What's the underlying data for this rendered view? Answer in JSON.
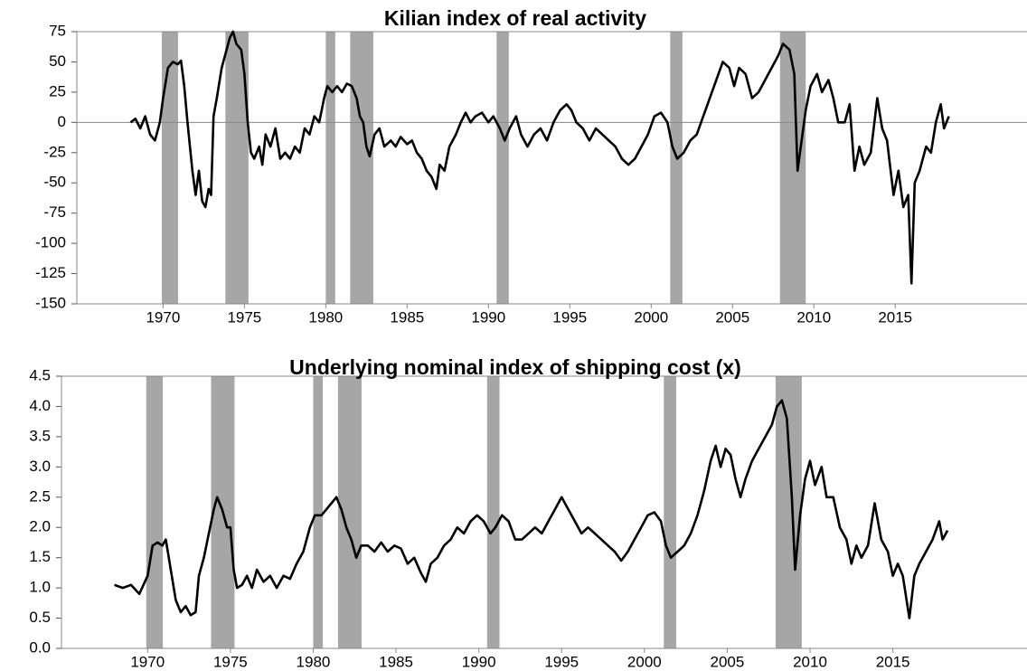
{
  "chart_data": [
    {
      "type": "line",
      "title": "Kilian index of real activity",
      "color": "#000000",
      "span_color": "#a6a6a6",
      "xlim": [
        1964.7,
        2023.1
      ],
      "xticks": [
        1970,
        1975,
        1980,
        1985,
        1990,
        1995,
        2000,
        2005,
        2010,
        2015
      ],
      "ylim": [
        -150,
        75
      ],
      "yticks": [
        -150,
        -125,
        -100,
        -75,
        -50,
        -25,
        0,
        25,
        50,
        75
      ],
      "shaded_spans": [
        [
          1969.92,
          1970.92
        ],
        [
          1973.83,
          1975.25
        ],
        [
          1980.0,
          1980.58
        ],
        [
          1981.5,
          1982.92
        ],
        [
          1990.5,
          1991.25
        ],
        [
          2001.17,
          2001.92
        ],
        [
          2007.92,
          2009.5
        ]
      ],
      "x": [
        1968.0,
        1968.3,
        1968.6,
        1968.9,
        1969.2,
        1969.5,
        1969.8,
        1970.0,
        1970.3,
        1970.6,
        1970.9,
        1971.1,
        1971.3,
        1971.5,
        1971.8,
        1972.0,
        1972.2,
        1972.4,
        1972.6,
        1972.8,
        1972.95,
        1973.1,
        1973.3,
        1973.6,
        1973.9,
        1974.1,
        1974.3,
        1974.5,
        1974.8,
        1975.0,
        1975.2,
        1975.4,
        1975.6,
        1975.9,
        1976.1,
        1976.3,
        1976.6,
        1976.9,
        1977.2,
        1977.5,
        1977.8,
        1978.1,
        1978.4,
        1978.7,
        1979.0,
        1979.3,
        1979.6,
        1979.9,
        1980.1,
        1980.4,
        1980.7,
        1981.0,
        1981.3,
        1981.6,
        1981.9,
        1982.1,
        1982.3,
        1982.5,
        1982.7,
        1983.0,
        1983.3,
        1983.6,
        1984.0,
        1984.3,
        1984.6,
        1985.0,
        1985.3,
        1985.6,
        1985.9,
        1986.2,
        1986.5,
        1986.8,
        1987.0,
        1987.3,
        1987.6,
        1988.0,
        1988.3,
        1988.6,
        1988.9,
        1989.2,
        1989.6,
        1990.0,
        1990.3,
        1990.7,
        1991.0,
        1991.3,
        1991.7,
        1992.0,
        1992.4,
        1992.8,
        1993.2,
        1993.6,
        1994.0,
        1994.4,
        1994.8,
        1995.1,
        1995.4,
        1995.8,
        1996.2,
        1996.6,
        1997.0,
        1997.4,
        1997.8,
        1998.2,
        1998.6,
        1999.0,
        1999.4,
        1999.8,
        2000.2,
        2000.6,
        2001.0,
        2001.3,
        2001.6,
        2002.0,
        2002.4,
        2002.8,
        2003.2,
        2003.6,
        2004.0,
        2004.4,
        2004.8,
        2005.1,
        2005.4,
        2005.8,
        2006.2,
        2006.6,
        2007.0,
        2007.4,
        2007.8,
        2008.1,
        2008.5,
        2008.8,
        2009.0,
        2009.2,
        2009.5,
        2009.8,
        2010.2,
        2010.5,
        2010.9,
        2011.2,
        2011.5,
        2011.9,
        2012.2,
        2012.5,
        2012.8,
        2013.1,
        2013.5,
        2013.9,
        2014.2,
        2014.5,
        2014.9,
        2015.2,
        2015.5,
        2015.8,
        2016.0,
        2016.2,
        2016.5,
        2016.9,
        2017.2,
        2017.5,
        2017.8,
        2018.0,
        2018.3
      ],
      "values": [
        0,
        3,
        -5,
        5,
        -10,
        -15,
        0,
        20,
        45,
        50,
        48,
        51,
        30,
        0,
        -40,
        -60,
        -40,
        -65,
        -70,
        -55,
        -60,
        5,
        20,
        45,
        60,
        70,
        75,
        65,
        60,
        40,
        0,
        -25,
        -30,
        -20,
        -35,
        -10,
        -20,
        -5,
        -30,
        -25,
        -30,
        -20,
        -25,
        -5,
        -10,
        5,
        0,
        20,
        30,
        25,
        30,
        25,
        32,
        30,
        20,
        5,
        0,
        -20,
        -28,
        -10,
        -5,
        -20,
        -15,
        -20,
        -12,
        -18,
        -15,
        -25,
        -30,
        -40,
        -45,
        -55,
        -35,
        -40,
        -20,
        -10,
        0,
        8,
        0,
        5,
        8,
        0,
        5,
        -5,
        -15,
        -5,
        5,
        -10,
        -20,
        -10,
        -5,
        -15,
        0,
        10,
        15,
        10,
        0,
        -5,
        -15,
        -5,
        -10,
        -15,
        -20,
        -30,
        -35,
        -30,
        -20,
        -10,
        5,
        8,
        0,
        -20,
        -30,
        -25,
        -15,
        -10,
        5,
        20,
        35,
        50,
        45,
        30,
        45,
        40,
        20,
        25,
        35,
        45,
        55,
        65,
        60,
        40,
        -40,
        -20,
        10,
        30,
        40,
        25,
        35,
        20,
        0,
        0,
        15,
        -40,
        -20,
        -35,
        -25,
        20,
        -5,
        -15,
        -60,
        -40,
        -70,
        -60,
        -133,
        -50,
        -40,
        -20,
        -25,
        0,
        15,
        -5,
        5
      ]
    },
    {
      "type": "line",
      "title": "Underlying nominal index of shipping cost (x)",
      "color": "#000000",
      "span_color": "#a6a6a6",
      "xlim": [
        1964.8,
        2023.1
      ],
      "xticks": [
        1970,
        1975,
        1980,
        1985,
        1990,
        1995,
        2000,
        2005,
        2010,
        2015
      ],
      "ylim": [
        0,
        4.5
      ],
      "yticks": [
        {
          "value": 0,
          "label": "0.0"
        },
        0.5,
        {
          "value": 1,
          "label": "1.0"
        },
        1.5,
        {
          "value": 2,
          "label": "2.0"
        },
        2.5,
        {
          "value": 3,
          "label": "3.0"
        },
        3.5,
        {
          "value": 4,
          "label": "4.0"
        },
        4.5
      ],
      "shaded_spans": [
        [
          1969.92,
          1970.92
        ],
        [
          1973.83,
          1975.25
        ],
        [
          1980.0,
          1980.58
        ],
        [
          1981.5,
          1982.92
        ],
        [
          1990.5,
          1991.25
        ],
        [
          2001.17,
          2001.92
        ],
        [
          2007.92,
          2009.5
        ]
      ],
      "x": [
        1968.0,
        1968.5,
        1969.0,
        1969.5,
        1970.0,
        1970.3,
        1970.6,
        1970.9,
        1971.1,
        1971.4,
        1971.7,
        1972.0,
        1972.3,
        1972.6,
        1972.9,
        1973.1,
        1973.4,
        1973.7,
        1974.0,
        1974.2,
        1974.5,
        1974.8,
        1975.0,
        1975.2,
        1975.4,
        1975.7,
        1976.0,
        1976.3,
        1976.6,
        1977.0,
        1977.4,
        1977.8,
        1978.2,
        1978.6,
        1979.0,
        1979.4,
        1979.8,
        1980.1,
        1980.5,
        1980.8,
        1981.1,
        1981.4,
        1981.7,
        1982.0,
        1982.3,
        1982.6,
        1982.9,
        1983.3,
        1983.7,
        1984.1,
        1984.5,
        1984.9,
        1985.3,
        1985.7,
        1986.1,
        1986.5,
        1986.8,
        1987.1,
        1987.5,
        1987.9,
        1988.3,
        1988.7,
        1989.1,
        1989.5,
        1989.9,
        1990.3,
        1990.7,
        1991.0,
        1991.4,
        1991.8,
        1992.2,
        1992.6,
        1993.0,
        1993.4,
        1993.8,
        1994.2,
        1994.6,
        1995.0,
        1995.4,
        1995.8,
        1996.2,
        1996.6,
        1997.0,
        1997.4,
        1997.8,
        1998.2,
        1998.6,
        1999.0,
        1999.4,
        1999.8,
        2000.2,
        2000.6,
        2001.0,
        2001.3,
        2001.6,
        2002.0,
        2002.4,
        2002.8,
        2003.2,
        2003.6,
        2004.0,
        2004.3,
        2004.6,
        2004.9,
        2005.2,
        2005.5,
        2005.8,
        2006.1,
        2006.5,
        2006.9,
        2007.3,
        2007.7,
        2008.0,
        2008.3,
        2008.6,
        2008.9,
        2009.1,
        2009.4,
        2009.7,
        2010.0,
        2010.3,
        2010.7,
        2011.0,
        2011.4,
        2011.8,
        2012.2,
        2012.5,
        2012.8,
        2013.1,
        2013.5,
        2013.9,
        2014.3,
        2014.7,
        2015.0,
        2015.3,
        2015.6,
        2016.0,
        2016.3,
        2016.6,
        2017.0,
        2017.4,
        2017.8,
        2018.0,
        2018.3
      ],
      "values": [
        1.05,
        1.0,
        1.05,
        0.9,
        1.2,
        1.7,
        1.75,
        1.7,
        1.8,
        1.3,
        0.8,
        0.6,
        0.7,
        0.55,
        0.6,
        1.2,
        1.5,
        1.9,
        2.3,
        2.5,
        2.3,
        2.0,
        2.0,
        1.3,
        1.0,
        1.05,
        1.2,
        1.0,
        1.3,
        1.1,
        1.2,
        1.0,
        1.2,
        1.15,
        1.4,
        1.6,
        2.0,
        2.2,
        2.2,
        2.3,
        2.4,
        2.5,
        2.3,
        2.0,
        1.8,
        1.5,
        1.7,
        1.7,
        1.6,
        1.75,
        1.6,
        1.7,
        1.65,
        1.4,
        1.5,
        1.25,
        1.1,
        1.4,
        1.5,
        1.7,
        1.8,
        2.0,
        1.9,
        2.1,
        2.2,
        2.1,
        1.9,
        2.0,
        2.2,
        2.1,
        1.8,
        1.8,
        1.9,
        2.0,
        1.9,
        2.1,
        2.3,
        2.5,
        2.3,
        2.1,
        1.9,
        2.0,
        1.9,
        1.8,
        1.7,
        1.6,
        1.45,
        1.6,
        1.8,
        2.0,
        2.2,
        2.25,
        2.1,
        1.7,
        1.5,
        1.6,
        1.7,
        1.9,
        2.2,
        2.6,
        3.1,
        3.35,
        3.0,
        3.3,
        3.2,
        2.8,
        2.5,
        2.8,
        3.1,
        3.3,
        3.5,
        3.7,
        4.0,
        4.1,
        3.8,
        2.5,
        1.3,
        2.2,
        2.8,
        3.1,
        2.7,
        3.0,
        2.5,
        2.5,
        2.0,
        1.8,
        1.4,
        1.7,
        1.5,
        1.7,
        2.4,
        1.8,
        1.6,
        1.2,
        1.4,
        1.2,
        0.5,
        1.2,
        1.4,
        1.6,
        1.8,
        2.1,
        1.8,
        1.95
      ]
    }
  ]
}
